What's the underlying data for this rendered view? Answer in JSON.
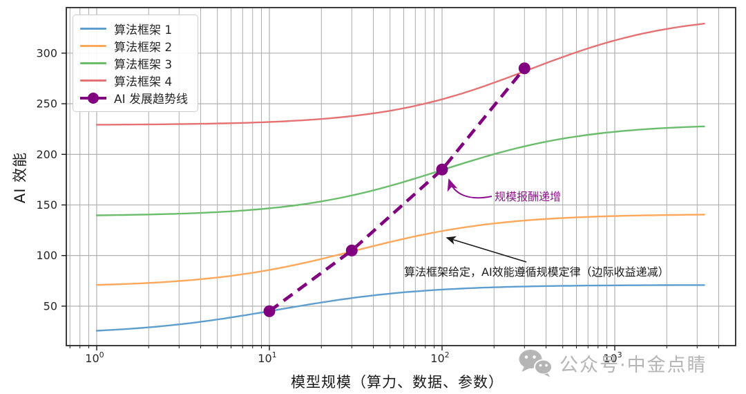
{
  "figure": {
    "background": "#ffffff",
    "frame_color": "#1a1a1a",
    "grid_color": "#a9a9a9",
    "tick_label_color": "#262626"
  },
  "chart_data": {
    "type": "line",
    "title": "",
    "xlabel": "模型规模（算力、数据、参数）",
    "ylabel": "AI 效能",
    "x_scale": "log",
    "xlim": [
      0.667,
      5012
    ],
    "ylim": [
      11,
      345
    ],
    "grid": {
      "which": "both",
      "on": true
    },
    "x_ticks": [
      {
        "base": "10",
        "exp": "0",
        "value": 1
      },
      {
        "base": "10",
        "exp": "1",
        "value": 10
      },
      {
        "base": "10",
        "exp": "2",
        "value": 100
      },
      {
        "base": "10",
        "exp": "3",
        "value": 1000
      }
    ],
    "y_ticks": [
      50,
      100,
      150,
      200,
      250,
      300
    ],
    "series": [
      {
        "name": "算法框架 1",
        "color": "#5e9ecf",
        "line_width": 2.4,
        "model": "logistic_log10",
        "low": 22,
        "high": 71,
        "center": 1.05,
        "width": 0.42,
        "x_start": 1,
        "x_end": 3300,
        "sample_points": [
          [
            1,
            26
          ],
          [
            10,
            45
          ],
          [
            100,
            66
          ],
          [
            1000,
            70
          ],
          [
            3300,
            71
          ]
        ]
      },
      {
        "name": "算法框架 2",
        "color": "#ffa85c",
        "line_width": 2.4,
        "model": "logistic_log10",
        "low": 69,
        "high": 141,
        "center": 1.5,
        "width": 0.42,
        "x_start": 1,
        "x_end": 3300,
        "sample_points": [
          [
            1,
            71
          ],
          [
            10,
            86
          ],
          [
            100,
            124
          ],
          [
            1000,
            139
          ],
          [
            3300,
            140
          ]
        ]
      },
      {
        "name": "算法框架 3",
        "color": "#69bd6b",
        "line_width": 2.4,
        "model": "logistic_log10",
        "low": 139,
        "high": 230,
        "center": 2.0,
        "width": 0.42,
        "x_start": 1,
        "x_end": 3300,
        "sample_points": [
          [
            1,
            140
          ],
          [
            10,
            147
          ],
          [
            100,
            184
          ],
          [
            1000,
            222
          ],
          [
            3300,
            228
          ]
        ]
      },
      {
        "name": "算法框架 4",
        "color": "#e57173",
        "line_width": 2.4,
        "model": "logistic_log10",
        "low": 229,
        "high": 338,
        "center": 2.5,
        "width": 0.42,
        "x_start": 1,
        "x_end": 3300,
        "sample_points": [
          [
            1,
            229
          ],
          [
            10,
            232
          ],
          [
            100,
            254
          ],
          [
            1000,
            313
          ],
          [
            3300,
            329
          ]
        ]
      }
    ],
    "trend": {
      "name": "AI 发展趋势线",
      "color": "#800080",
      "style": "dashed",
      "line_width": 4.6,
      "marker": "circle",
      "marker_radius": 8.5,
      "points": [
        [
          10,
          45
        ],
        [
          30,
          105
        ],
        [
          100,
          185
        ],
        [
          300,
          285
        ]
      ]
    },
    "legend": {
      "position": "upper left",
      "entries": [
        "算法框架 1",
        "算法框架 2",
        "算法框架 3",
        "算法框架 4",
        "AI 发展趋势线"
      ]
    },
    "annotations": [
      {
        "id": "increasing-returns",
        "text": "规模报酬递增",
        "color": "#8f108f",
        "target": "trend point (100, 185)",
        "arrow": "curved"
      },
      {
        "id": "scaling-law",
        "text": "算法框架给定，AI效能遵循规模定律（边际收益递减）",
        "color": "#1a1a1a",
        "target": "算法框架 2 curve near x=100",
        "arrow": "straight"
      }
    ]
  },
  "watermark": {
    "icon": "wechat-icon",
    "text": "公众号·中金点睛",
    "color": "#b5b5b5"
  }
}
